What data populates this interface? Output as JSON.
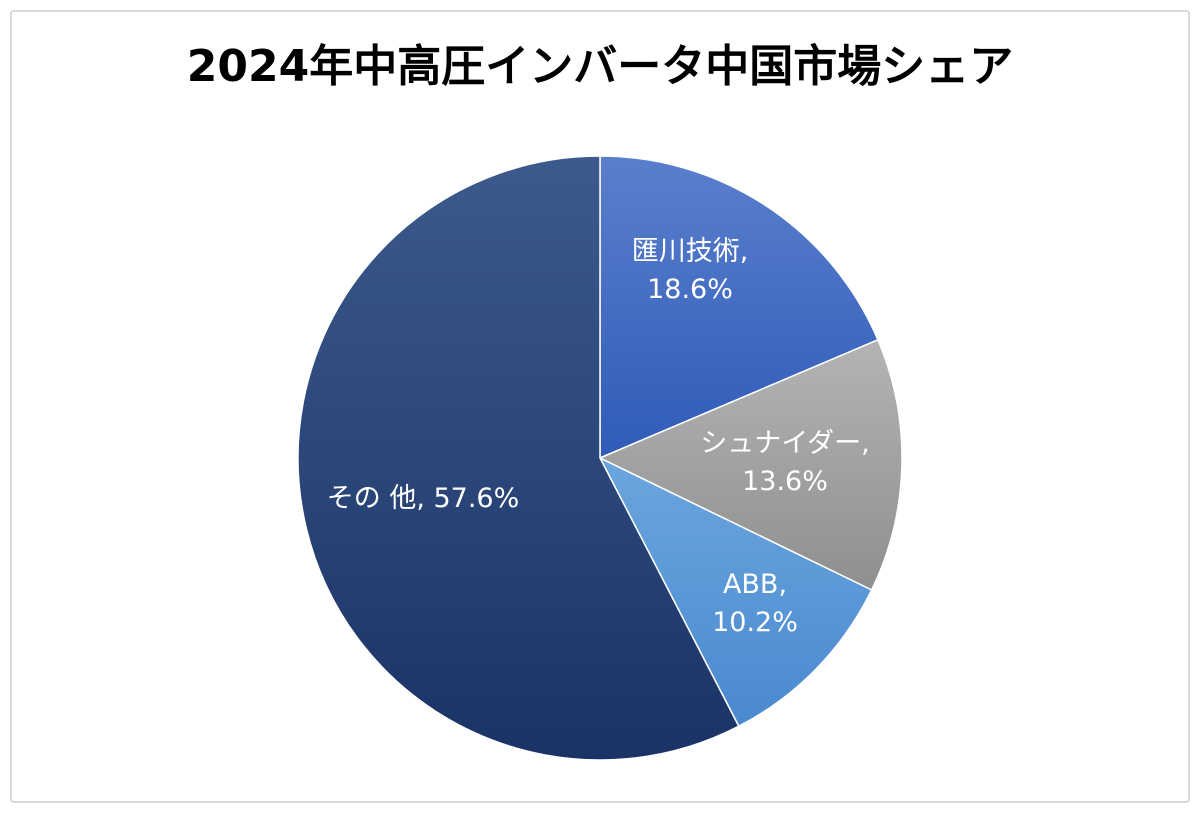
{
  "chart_data": {
    "type": "pie",
    "title": "2024年中高圧インバータ中国市場シェア",
    "slices": [
      {
        "name": "匯川技術",
        "value": 18.6,
        "label_name": "匯川技術,",
        "label_value": "18.6%",
        "color": "#4472c4"
      },
      {
        "name": "シュナイダー",
        "value": 13.6,
        "label_name": "シュナイダー,",
        "label_value": "13.6%",
        "color": "#a5a5a5"
      },
      {
        "name": "ABB",
        "value": 10.2,
        "label_name": "ABB,",
        "label_value": "10.2%",
        "color": "#5b9bd5"
      },
      {
        "name": "その他",
        "value": 57.6,
        "label_name": "その 他,",
        "label_value": "57.6%",
        "color": "#1f3a6e"
      }
    ],
    "start_angle_deg": 0,
    "direction": "clockwise",
    "legend": "none"
  }
}
